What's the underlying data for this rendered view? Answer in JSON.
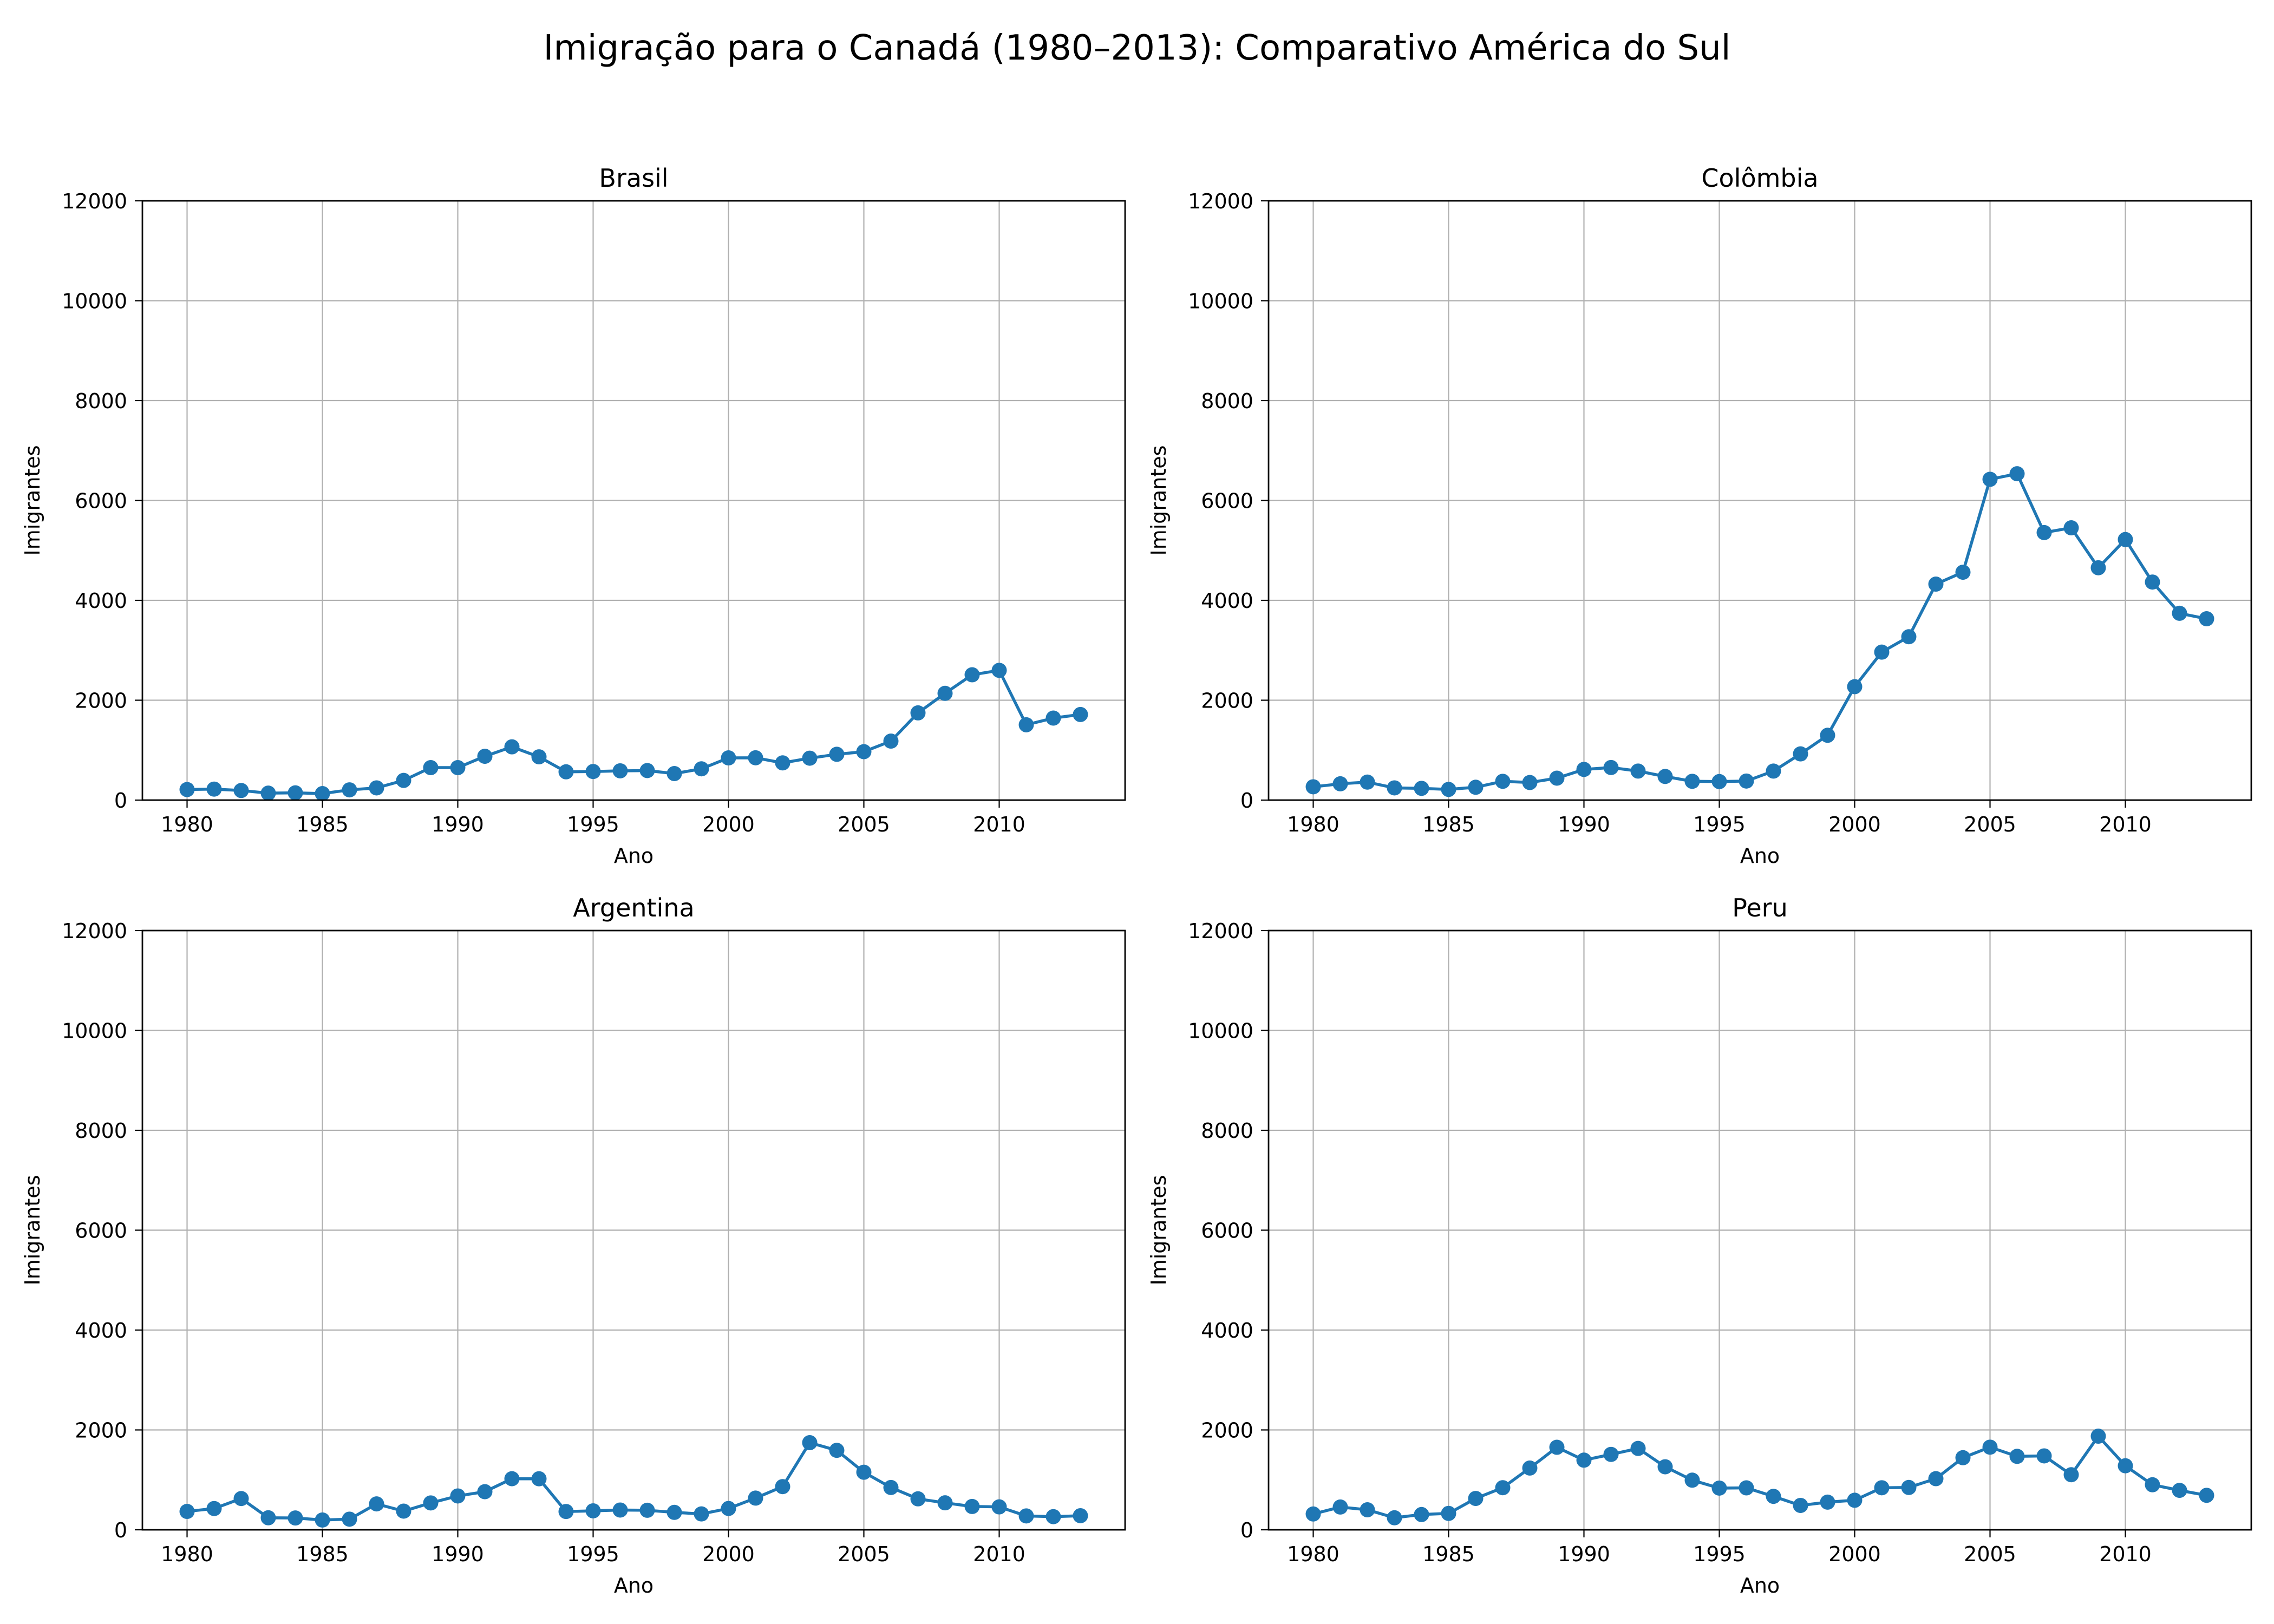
{
  "figure": {
    "title": "Imigração para o Canadá (1980–2013): Comparativo América do Sul"
  },
  "chart_data": [
    {
      "type": "line",
      "title": "Brasil",
      "xlabel": "Ano",
      "ylabel": "Imigrantes",
      "xlim": [
        1978.35,
        2014.65
      ],
      "ylim": [
        0,
        12000
      ],
      "xticks": [
        1980,
        1985,
        1990,
        1995,
        2000,
        2005,
        2010
      ],
      "yticks": [
        0,
        2000,
        4000,
        6000,
        8000,
        10000,
        12000
      ],
      "grid": true,
      "color": "#1f77b4",
      "x": [
        1980,
        1981,
        1982,
        1983,
        1984,
        1985,
        1986,
        1987,
        1988,
        1989,
        1990,
        1991,
        1992,
        1993,
        1994,
        1995,
        1996,
        1997,
        1998,
        1999,
        2000,
        2001,
        2002,
        2003,
        2004,
        2005,
        2006,
        2007,
        2008,
        2009,
        2010,
        2011,
        2012,
        2013
      ],
      "y": [
        211,
        220,
        192,
        139,
        145,
        130,
        205,
        244,
        394,
        650,
        650,
        877,
        1066,
        866,
        566,
        572,
        586,
        591,
        531,
        626,
        845,
        847,
        745,
        839,
        917,
        969,
        1181,
        1746,
        2138,
        2509,
        2598,
        1508,
        1642,
        1714
      ]
    },
    {
      "type": "line",
      "title": "Colômbia",
      "xlabel": "Ano",
      "ylabel": "Imigrantes",
      "xlim": [
        1978.35,
        2014.65
      ],
      "ylim": [
        0,
        12000
      ],
      "xticks": [
        1980,
        1985,
        1990,
        1995,
        2000,
        2005,
        2010
      ],
      "yticks": [
        0,
        2000,
        4000,
        6000,
        8000,
        10000,
        12000
      ],
      "grid": true,
      "color": "#1f77b4",
      "x": [
        1980,
        1981,
        1982,
        1983,
        1984,
        1985,
        1986,
        1987,
        1988,
        1989,
        1990,
        1991,
        1992,
        1993,
        1994,
        1995,
        1996,
        1997,
        1998,
        1999,
        2000,
        2001,
        2002,
        2003,
        2004,
        2005,
        2006,
        2007,
        2008,
        2009,
        2010,
        2011,
        2012,
        2013
      ],
      "y": [
        266,
        326,
        360,
        244,
        235,
        214,
        257,
        376,
        352,
        439,
        614,
        652,
        581,
        473,
        376,
        371,
        381,
        581,
        925,
        1298,
        2271,
        2963,
        3271,
        4325,
        4563,
        6424,
        6535,
        5357,
        5452,
        4652,
        5218,
        4366,
        3741,
        3631
      ]
    },
    {
      "type": "line",
      "title": "Argentina",
      "xlabel": "Ano",
      "ylabel": "Imigrantes",
      "xlim": [
        1978.35,
        2014.65
      ],
      "ylim": [
        0,
        12000
      ],
      "xticks": [
        1980,
        1985,
        1990,
        1995,
        2000,
        2005,
        2010
      ],
      "yticks": [
        0,
        2000,
        4000,
        6000,
        8000,
        10000,
        12000
      ],
      "grid": true,
      "color": "#1f77b4",
      "x": [
        1980,
        1981,
        1982,
        1983,
        1984,
        1985,
        1986,
        1987,
        1988,
        1989,
        1990,
        1991,
        1992,
        1993,
        1994,
        1995,
        1996,
        1997,
        1998,
        1999,
        2000,
        2001,
        2002,
        2003,
        2004,
        2005,
        2006,
        2007,
        2008,
        2009,
        2010,
        2011,
        2012,
        2013
      ],
      "y": [
        368,
        426,
        626,
        241,
        237,
        196,
        213,
        519,
        374,
        538,
        678,
        763,
        1023,
        1022,
        366,
        380,
        396,
        391,
        349,
        318,
        427,
        635,
        865,
        1745,
        1591,
        1153,
        847,
        620,
        540,
        467,
        459,
        278,
        263,
        282
      ]
    },
    {
      "type": "line",
      "title": "Peru",
      "xlabel": "Ano",
      "ylabel": "Imigrantes",
      "xlim": [
        1978.35,
        2014.65
      ],
      "ylim": [
        0,
        12000
      ],
      "xticks": [
        1980,
        1985,
        1990,
        1995,
        2000,
        2005,
        2010
      ],
      "yticks": [
        0,
        2000,
        4000,
        6000,
        8000,
        10000,
        12000
      ],
      "grid": true,
      "color": "#1f77b4",
      "x": [
        1980,
        1981,
        1982,
        1983,
        1984,
        1985,
        1986,
        1987,
        1988,
        1989,
        1990,
        1991,
        1992,
        1993,
        1994,
        1995,
        1996,
        1997,
        1998,
        1999,
        2000,
        2001,
        2002,
        2003,
        2004,
        2005,
        2006,
        2007,
        2008,
        2009,
        2010,
        2011,
        2012,
        2013
      ],
      "y": [
        317,
        456,
        401,
        241,
        306,
        328,
        628,
        843,
        1237,
        1653,
        1395,
        1510,
        1630,
        1262,
        994,
        835,
        840,
        670,
        488,
        554,
        592,
        842,
        848,
        1024,
        1444,
        1655,
        1471,
        1480,
        1103,
        1875,
        1282,
        902,
        790,
        690
      ]
    }
  ]
}
